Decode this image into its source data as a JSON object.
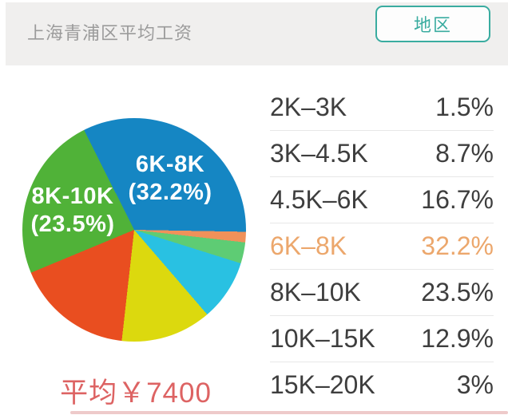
{
  "header": {
    "title": "上海青浦区平均工资",
    "region_button_label": "地区"
  },
  "chart_data": {
    "type": "pie",
    "title": "上海青浦区平均工资",
    "unit": "percent",
    "start_angle_deg": 91,
    "slices_clockwise": [
      {
        "label": "2K-3K",
        "value": 1.5,
        "color": "#f0915a"
      },
      {
        "label": "15K-20K",
        "value": 3,
        "color": "#5ecc74"
      },
      {
        "label": "3K-4.5K",
        "value": 8.7,
        "color": "#29c1e2"
      },
      {
        "label": "10K-15K",
        "value": 12.9,
        "color": "#dcd90e"
      },
      {
        "label": "4.5K-6K",
        "value": 16.7,
        "color": "#e94e20"
      },
      {
        "label": "8K-10K",
        "value": 23.5,
        "color": "#50b238"
      },
      {
        "label": "6K-8K",
        "value": 32.2,
        "color": "#1586c3"
      }
    ],
    "inner_labels": [
      {
        "line1": "6K-8K",
        "line2": "(32.2%)"
      },
      {
        "line1": "8K-10K",
        "line2": "(23.5%)"
      }
    ],
    "average_annotation": "平均￥7400",
    "legend_position": "right"
  },
  "list": {
    "rows": [
      {
        "range": "2K–3K",
        "percent": "1.5%",
        "highlighted": false
      },
      {
        "range": "3K–4.5K",
        "percent": "8.7%",
        "highlighted": false
      },
      {
        "range": "4.5K–6K",
        "percent": "16.7%",
        "highlighted": false
      },
      {
        "range": "6K–8K",
        "percent": "32.2%",
        "highlighted": true
      },
      {
        "range": "8K–10K",
        "percent": "23.5%",
        "highlighted": false
      },
      {
        "range": "10K–15K",
        "percent": "12.9%",
        "highlighted": false
      },
      {
        "range": "15K–20K",
        "percent": "3%",
        "highlighted": false
      }
    ]
  },
  "colors": {
    "accent_teal": "#3aaca0",
    "highlight_orange": "#eca76c",
    "average_red": "#dd6363",
    "text_dark": "#3e3e3e",
    "title_gray": "#9b9b9b"
  }
}
